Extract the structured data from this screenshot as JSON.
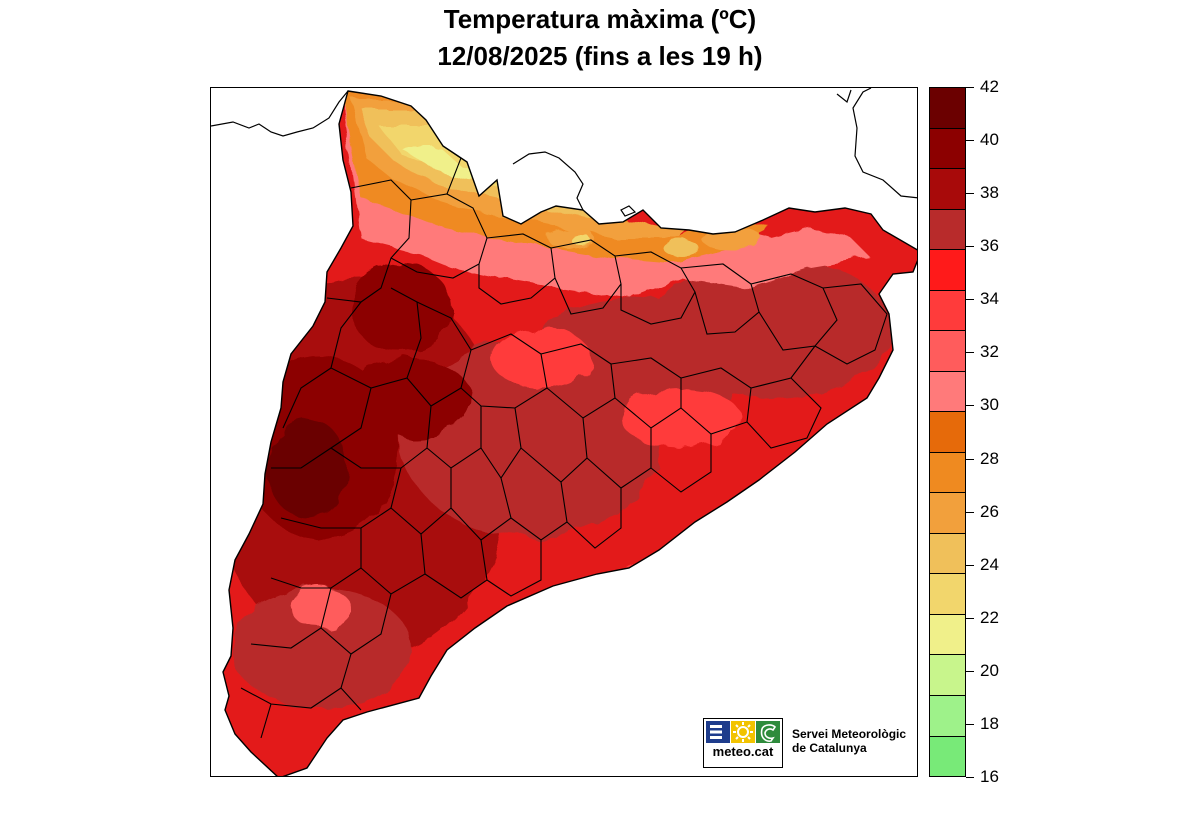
{
  "title": {
    "line1": "Temperatura màxima (ºC)",
    "line2": "12/08/2025 (fins a les 19 h)"
  },
  "map": {
    "region": "Catalunya",
    "variable": "temperatura màxima",
    "units": "ºC"
  },
  "legend": {
    "ticks": [
      "42",
      "40",
      "38",
      "36",
      "34",
      "32",
      "30",
      "28",
      "26",
      "24",
      "22",
      "20",
      "18",
      "16"
    ],
    "min": 16,
    "max": 42,
    "colors": [
      "#6b0000",
      "#8c0000",
      "#a80a0a",
      "#b82b2b",
      "#ff1a1a",
      "#ff3b3b",
      "#ff5c5c",
      "#ff7a7a",
      "#e66a0a",
      "#ef8a20",
      "#f2a03c",
      "#f0c05a",
      "#f2d66c",
      "#f0f08a",
      "#c8f58c",
      "#9ef28a",
      "#78ea78"
    ]
  },
  "logo": {
    "text": "meteo.cat",
    "colors": [
      "#1e3c8c",
      "#f2c300",
      "#2e8b3c"
    ]
  },
  "organization": {
    "line1": "Servei Meteorològic",
    "line2": "de Catalunya"
  }
}
